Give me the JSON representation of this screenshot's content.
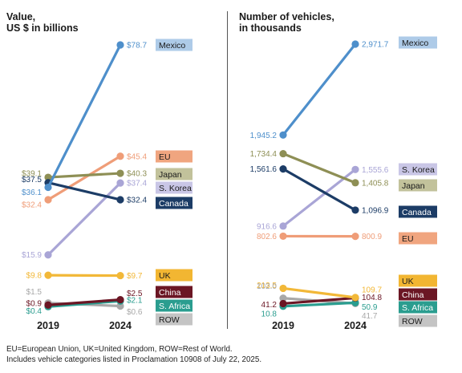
{
  "chart_data": [
    {
      "type": "line",
      "title": "Value,\nUS $ in billions",
      "categories": [
        "2019",
        "2024"
      ],
      "series": [
        {
          "name": "Mexico",
          "values": [
            36.1,
            78.7
          ],
          "labels": [
            "$36.1",
            "$78.7"
          ],
          "color": "#4e8fcb",
          "tag_color": "#aecbe8",
          "tag_text_color": "#1a1a1a"
        },
        {
          "name": "EU",
          "values": [
            32.4,
            45.4
          ],
          "labels": [
            "$32.4",
            "$45.4"
          ],
          "color": "#ef9d78",
          "tag_color": "#f0a57f",
          "tag_text_color": "#1a1a1a"
        },
        {
          "name": "Japan",
          "values": [
            39.1,
            40.3
          ],
          "labels": [
            "$39.1",
            "$40.3"
          ],
          "color": "#8e8f55",
          "tag_color": "#c2c29b",
          "tag_text_color": "#1a1a1a"
        },
        {
          "name": "S. Korea",
          "values": [
            15.9,
            37.4
          ],
          "labels": [
            "$15.9",
            "$37.4"
          ],
          "color": "#a9a5d6",
          "tag_color": "#c9c6e6",
          "tag_text_color": "#1a1a1a"
        },
        {
          "name": "Canada",
          "values": [
            37.5,
            32.4
          ],
          "labels": [
            "$37.5",
            "$32.4"
          ],
          "color": "#1c3c66",
          "tag_color": "#1c3c66",
          "tag_text_color": "#ffffff"
        },
        {
          "name": "UK",
          "values": [
            9.8,
            9.7
          ],
          "labels": [
            "$9.8",
            "$9.7"
          ],
          "color": "#f2b838",
          "tag_color": "#f2b632",
          "tag_text_color": "#1a1a1a"
        },
        {
          "name": "China",
          "values": [
            0.9,
            2.5
          ],
          "labels": [
            "$0.9",
            "$2.5"
          ],
          "color": "#6b1624",
          "tag_color": "#6b1624",
          "tag_text_color": "#ffffff"
        },
        {
          "name": "S. Africa",
          "values": [
            0.4,
            2.1
          ],
          "labels": [
            "$0.4",
            "$2.1"
          ],
          "color": "#2a9d8f",
          "tag_color": "#2a9d8f",
          "tag_text_color": "#ffffff"
        },
        {
          "name": "ROW",
          "values": [
            1.5,
            0.6
          ],
          "labels": [
            "$1.5",
            "$0.6"
          ],
          "color": "#a8a8a8",
          "tag_color": "#c4c4c4",
          "tag_text_color": "#1a1a1a"
        }
      ]
    },
    {
      "type": "line",
      "title": "Number of vehicles,\nin thousands",
      "categories": [
        "2019",
        "2024"
      ],
      "series": [
        {
          "name": "Mexico",
          "values": [
            1945.2,
            2971.7
          ],
          "labels": [
            "1,945.2",
            "2,971.7"
          ],
          "color": "#4e8fcb",
          "tag_color": "#aecbe8",
          "tag_text_color": "#1a1a1a"
        },
        {
          "name": "S. Korea",
          "values": [
            916.6,
            1555.6
          ],
          "labels": [
            "916.6",
            "1,555.6"
          ],
          "color": "#a9a5d6",
          "tag_color": "#c9c6e6",
          "tag_text_color": "#1a1a1a"
        },
        {
          "name": "Japan",
          "values": [
            1734.4,
            1405.8
          ],
          "labels": [
            "1,734.4",
            "1,405.8"
          ],
          "color": "#8e8f55",
          "tag_color": "#c2c29b",
          "tag_text_color": "#1a1a1a"
        },
        {
          "name": "Canada",
          "values": [
            1561.6,
            1096.9
          ],
          "labels": [
            "1,561.6",
            "1,096.9"
          ],
          "color": "#1c3c66",
          "tag_color": "#1c3c66",
          "tag_text_color": "#ffffff"
        },
        {
          "name": "EU",
          "values": [
            802.6,
            800.9
          ],
          "labels": [
            "802.6",
            "800.9"
          ],
          "color": "#ef9d78",
          "tag_color": "#f0a57f",
          "tag_text_color": "#1a1a1a"
        },
        {
          "name": "UK",
          "values": [
            213.5,
            109.7
          ],
          "labels": [
            "213.5",
            "109.7"
          ],
          "color": "#f2b838",
          "tag_color": "#f2b632",
          "tag_text_color": "#1a1a1a"
        },
        {
          "name": "China",
          "values": [
            41.2,
            104.8
          ],
          "labels": [
            "41.2",
            "104.8"
          ],
          "color": "#6b1624",
          "tag_color": "#6b1624",
          "tag_text_color": "#ffffff"
        },
        {
          "name": "S. Africa",
          "values": [
            10.8,
            50.9
          ],
          "labels": [
            "10.8",
            "50.9"
          ],
          "color": "#2a9d8f",
          "tag_color": "#2a9d8f",
          "tag_text_color": "#ffffff"
        },
        {
          "name": "ROW",
          "values": [
            102.0,
            41.7
          ],
          "labels": [
            "102.0",
            "41.7"
          ],
          "color": "#a8a8a8",
          "tag_color": "#c4c4c4",
          "tag_text_color": "#1a1a1a"
        }
      ]
    }
  ],
  "footnotes": {
    "line1": "EU=European Union, UK=United Kingdom, ROW=Rest of World.",
    "line2": "Includes vehicle categories listed in Proclamation 10908 of July 22, 2025."
  }
}
